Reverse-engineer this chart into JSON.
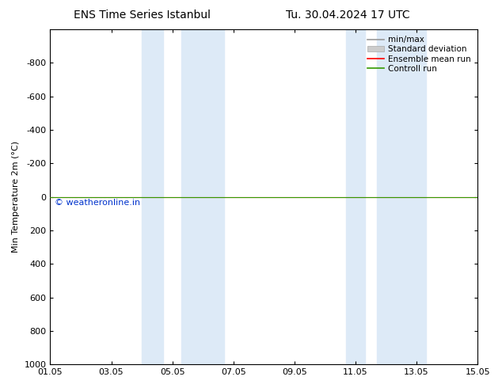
{
  "title_left": "ENS Time Series Istanbul",
  "title_right": "Tu. 30.04.2024 17 UTC",
  "ylabel": "Min Temperature 2m (°C)",
  "ylim_top": -1000,
  "ylim_bottom": 1000,
  "yticks": [
    -800,
    -600,
    -400,
    -200,
    0,
    200,
    400,
    600,
    800,
    1000
  ],
  "xlim": [
    0,
    14
  ],
  "xtick_labels": [
    "01.05",
    "03.05",
    "05.05",
    "07.05",
    "09.05",
    "11.05",
    "13.05",
    "15.05"
  ],
  "xtick_positions": [
    0,
    2,
    4,
    6,
    8,
    10,
    12,
    14
  ],
  "blue_bands": [
    [
      3.0,
      3.7
    ],
    [
      4.3,
      5.7
    ],
    [
      9.7,
      10.3
    ],
    [
      10.7,
      12.3
    ]
  ],
  "blue_band_color": "#ddeaf7",
  "green_line_y": 0,
  "red_line_y": 0,
  "control_run_color": "#339900",
  "ensemble_mean_color": "#ff0000",
  "minmax_color": "#999999",
  "stddev_color": "#cccccc",
  "watermark_text": "© weatheronline.in",
  "watermark_color": "#0033cc",
  "background_color": "#ffffff",
  "plot_bg_color": "#ffffff",
  "legend_items": [
    "min/max",
    "Standard deviation",
    "Ensemble mean run",
    "Controll run"
  ],
  "legend_colors": [
    "#999999",
    "#cccccc",
    "#ff0000",
    "#339900"
  ],
  "title_fontsize": 10,
  "tick_fontsize": 8,
  "ylabel_fontsize": 8,
  "legend_fontsize": 7.5
}
